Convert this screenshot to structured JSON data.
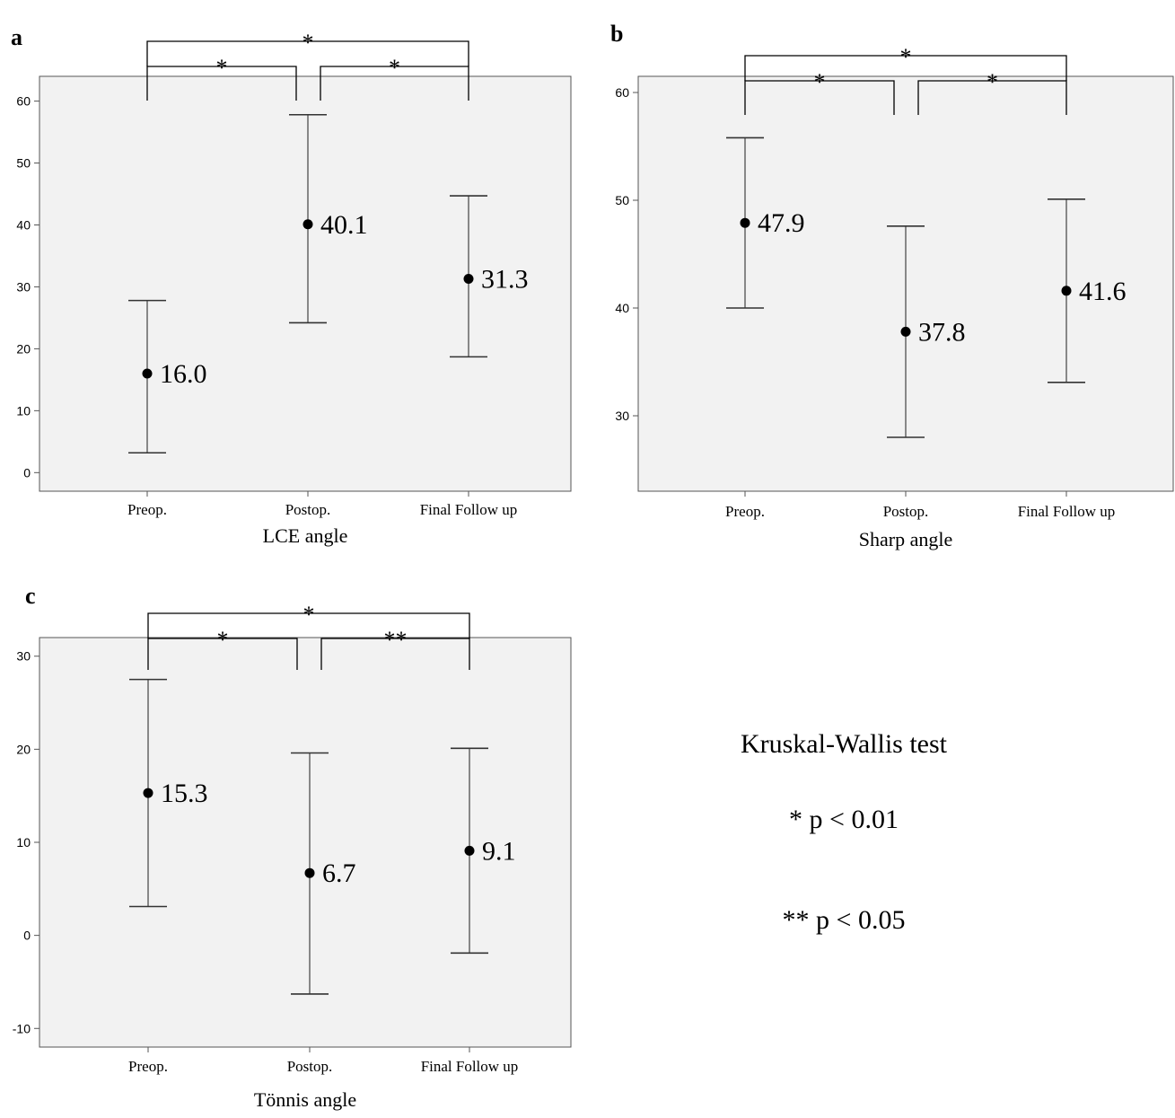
{
  "chart_data": [
    {
      "type": "errorbar",
      "panel_label": "a",
      "xlabel": "LCE angle",
      "categories": [
        "Preop.",
        "Postop.",
        "Final Follow up"
      ],
      "values": [
        16.0,
        40.1,
        31.3
      ],
      "value_labels": [
        "16.0",
        "40.1",
        "31.3"
      ],
      "error_low": [
        3.2,
        24.2,
        18.7
      ],
      "error_high": [
        27.8,
        57.8,
        44.7
      ],
      "ylim": [
        -3,
        64
      ],
      "yticks": [
        0,
        10,
        20,
        30,
        40,
        50,
        60
      ],
      "significance": [
        {
          "from": 0,
          "to": 1,
          "label": "*"
        },
        {
          "from": 1,
          "to": 2,
          "label": "*"
        },
        {
          "from": 0,
          "to": 2,
          "label": "*"
        }
      ]
    },
    {
      "type": "errorbar",
      "panel_label": "b",
      "xlabel": "Sharp angle",
      "categories": [
        "Preop.",
        "Postop.",
        "Final Follow up"
      ],
      "values": [
        47.9,
        37.8,
        41.6
      ],
      "value_labels": [
        "47.9",
        "37.8",
        "41.6"
      ],
      "error_low": [
        40.0,
        28.0,
        33.1
      ],
      "error_high": [
        55.8,
        47.6,
        50.1
      ],
      "ylim": [
        23,
        61.5
      ],
      "yticks": [
        30,
        40,
        50,
        60
      ],
      "significance": [
        {
          "from": 0,
          "to": 1,
          "label": "*"
        },
        {
          "from": 1,
          "to": 2,
          "label": "*"
        },
        {
          "from": 0,
          "to": 2,
          "label": "*"
        }
      ]
    },
    {
      "type": "errorbar",
      "panel_label": "c",
      "xlabel": "Tönnis angle",
      "categories": [
        "Preop.",
        "Postop.",
        "Final Follow up"
      ],
      "values": [
        15.3,
        6.7,
        9.1
      ],
      "value_labels": [
        "15.3",
        "6.7",
        "9.1"
      ],
      "error_low": [
        3.1,
        -6.3,
        -1.9
      ],
      "error_high": [
        27.5,
        19.6,
        20.1
      ],
      "ylim": [
        -12,
        32
      ],
      "yticks": [
        -10,
        0,
        10,
        20,
        30
      ],
      "significance": [
        {
          "from": 0,
          "to": 1,
          "label": "*"
        },
        {
          "from": 1,
          "to": 2,
          "label": "**"
        },
        {
          "from": 0,
          "to": 2,
          "label": "*"
        }
      ]
    }
  ],
  "legend": {
    "test_name": "Kruskal-Wallis test",
    "line1": "* p < 0.01",
    "line2": "** p < 0.05"
  }
}
